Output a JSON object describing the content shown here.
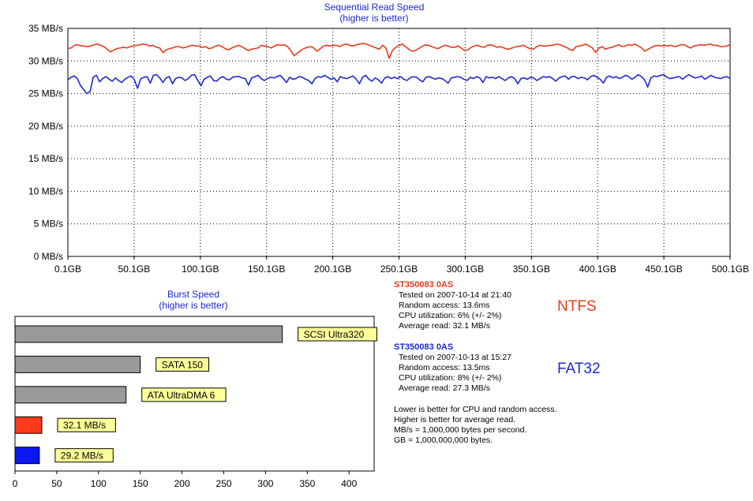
{
  "colors": {
    "ntfs": "#e63c1e",
    "fat32": "#1a2ad2",
    "title": "#1a2ad2",
    "grid": "#000000",
    "bar_gray": "#999999",
    "label_bg": "#ffff99"
  },
  "chart_data": [
    {
      "type": "line",
      "title": "Sequential Read Speed",
      "subtitle": "(higher is better)",
      "x_ticks": [
        "0.1GB",
        "50.1GB",
        "100.1GB",
        "150.1GB",
        "200.1GB",
        "250.1GB",
        "300.1GB",
        "350.1GB",
        "400.1GB",
        "450.1GB",
        "500.1GB"
      ],
      "y_ticks": [
        "0 MB/s",
        "5 MB/s",
        "10 MB/s",
        "15 MB/s",
        "20 MB/s",
        "25 MB/s",
        "30 MB/s",
        "35 MB/s"
      ],
      "xlim": [
        0.1,
        500.1
      ],
      "ylim": [
        0,
        35
      ],
      "grid": true,
      "series": [
        {
          "key": "ntfs",
          "base": 32.1,
          "values": [
            31.9,
            32.0,
            32.4,
            32.5,
            32.3,
            32.3,
            32.2,
            32.3,
            32.5,
            32.6,
            32.4,
            32.2,
            31.8,
            31.4,
            31.7,
            31.9,
            32.0,
            32.1,
            32.0,
            32.2,
            32.3,
            32.4,
            32.5,
            32.6,
            32.5,
            32.3,
            32.4,
            32.1,
            32.0,
            31.3,
            31.7,
            31.9,
            32.0,
            32.2,
            32.2,
            32.0,
            32.1,
            32.3,
            32.4,
            32.3,
            32.3,
            32.1,
            32.2,
            31.9,
            32.0,
            32.3,
            32.4,
            32.2,
            31.9,
            31.7,
            32.0,
            32.2,
            32.4,
            32.2,
            31.9,
            31.6,
            31.8,
            31.9,
            32.0,
            32.4,
            32.3,
            32.2,
            32.0,
            32.3,
            32.5,
            32.4,
            32.5,
            32.2,
            31.6,
            30.8,
            31.2,
            31.6,
            31.9,
            32.1,
            32.2,
            32.0,
            31.5,
            31.9,
            32.3,
            32.4,
            32.3,
            32.4,
            32.4,
            32.2,
            32.5,
            32.6,
            32.4,
            32.3,
            32.5,
            32.6,
            32.7,
            32.6,
            32.4,
            32.2,
            32.0,
            31.8,
            32.4,
            32.0,
            30.4,
            31.6,
            32.1,
            32.4,
            32.6,
            32.2,
            31.8,
            31.5,
            31.6,
            31.9,
            32.2,
            32.5,
            32.4,
            32.2,
            32.0,
            31.9,
            32.2,
            32.4,
            32.3,
            32.1,
            32.1,
            32.3,
            32.0,
            31.6,
            31.7,
            32.1,
            32.3,
            32.4,
            32.2,
            32.1,
            32.4,
            32.5,
            32.3,
            32.1,
            32.2,
            32.0,
            31.8,
            31.9,
            32.1,
            32.2,
            32.3,
            32.4,
            32.1,
            31.9,
            31.8,
            32.2,
            32.4,
            32.3,
            32.3,
            32.4,
            32.4,
            32.6,
            32.5,
            32.3,
            32.1,
            31.8,
            31.6,
            32.2,
            32.3,
            32.4,
            32.6,
            32.3,
            32.0,
            31.3,
            32.0,
            32.2,
            31.8,
            32.0,
            32.1,
            32.3,
            32.5,
            32.2,
            32.3,
            32.5,
            32.4,
            32.6,
            32.3,
            32.0,
            31.5,
            31.8,
            32.1,
            32.3,
            32.4,
            32.3,
            32.4,
            32.3,
            32.4,
            32.2,
            32.3,
            32.5,
            32.5,
            32.2,
            32.0,
            32.3,
            32.4,
            32.5,
            32.4,
            32.5,
            32.6,
            32.4,
            32.4,
            32.2,
            32.2,
            32.3,
            32.5
          ]
        },
        {
          "key": "fat32",
          "base": 27.3,
          "values": [
            27.1,
            27.5,
            27.7,
            27.3,
            26.2,
            25.6,
            25.0,
            25.3,
            27.5,
            27.8,
            26.8,
            27.3,
            27.6,
            27.2,
            26.9,
            27.4,
            27.0,
            26.7,
            27.2,
            27.5,
            27.7,
            27.1,
            25.8,
            27.3,
            27.5,
            27.6,
            26.6,
            27.8,
            27.9,
            27.4,
            26.7,
            27.4,
            27.6,
            26.5,
            27.3,
            27.5,
            27.4,
            27.0,
            27.3,
            27.8,
            27.9,
            27.0,
            26.2,
            27.2,
            27.5,
            27.7,
            27.0,
            26.9,
            27.4,
            27.6,
            27.2,
            27.1,
            27.5,
            27.6,
            27.6,
            27.4,
            27.3,
            26.3,
            27.4,
            27.6,
            27.8,
            27.3,
            27.0,
            27.3,
            27.5,
            27.4,
            27.6,
            27.8,
            27.3,
            26.7,
            27.5,
            27.2,
            27.3,
            27.6,
            27.5,
            27.2,
            27.0,
            26.5,
            27.3,
            27.6,
            27.5,
            27.8,
            27.5,
            27.2,
            27.4,
            26.8,
            27.6,
            27.4,
            27.3,
            27.5,
            27.7,
            27.2,
            26.5,
            27.5,
            27.8,
            27.2,
            26.9,
            27.4,
            27.1,
            26.6,
            27.4,
            27.6,
            27.3,
            27.5,
            27.3,
            27.6,
            27.2,
            27.0,
            27.4,
            27.6,
            27.5,
            27.1,
            26.8,
            27.5,
            27.6,
            27.4,
            27.2,
            27.4,
            27.3,
            27.0,
            26.6,
            27.4,
            27.5,
            27.6,
            27.5,
            27.2,
            27.0,
            27.5,
            27.3,
            27.6,
            27.4,
            26.7,
            27.6,
            27.4,
            27.5,
            27.3,
            27.6,
            27.3,
            27.0,
            27.4,
            27.6,
            27.3,
            26.5,
            27.3,
            27.4,
            27.2,
            27.5,
            27.4,
            27.0,
            27.3,
            27.6,
            27.5,
            27.6,
            27.3,
            26.9,
            27.4,
            27.6,
            27.7,
            27.2,
            27.6,
            27.6,
            27.3,
            27.5,
            27.4,
            27.1,
            27.6,
            27.8,
            27.5,
            27.2,
            26.6,
            27.5,
            27.7,
            27.4,
            27.6,
            27.3,
            27.5,
            27.8,
            27.6,
            27.2,
            27.5,
            27.9,
            27.6,
            27.1,
            26.0,
            27.4,
            27.7,
            27.6,
            27.8,
            27.9,
            27.5,
            27.3,
            27.4,
            27.5,
            27.6,
            27.2,
            27.6,
            27.9,
            27.6,
            27.4,
            27.5,
            27.7,
            27.2,
            27.5,
            27.8,
            27.5,
            27.4,
            27.3,
            27.5,
            27.6,
            27.3
          ]
        }
      ]
    },
    {
      "type": "bar",
      "orientation": "horizontal",
      "title": "Burst Speed",
      "subtitle": "(higher is better)",
      "x_ticks": [
        "0",
        "50",
        "100",
        "150",
        "200",
        "250",
        "300",
        "350",
        "400"
      ],
      "xlim": [
        0,
        430
      ],
      "bars": [
        {
          "label": "SCSI Ultra320",
          "value": 320,
          "color": "#999999"
        },
        {
          "label": "SATA 150",
          "value": 150,
          "color": "#999999"
        },
        {
          "label": "ATA UltraDMA 6",
          "value": 133,
          "color": "#999999"
        },
        {
          "label": "32.1 MB/s",
          "value": 32.1,
          "color": "#ff3a1a"
        },
        {
          "label": "29.2 MB/s",
          "value": 29.2,
          "color": "#0a18f0"
        }
      ]
    }
  ],
  "results": [
    {
      "drive": "ST350083 0AS",
      "tested": "Tested on 2007-10-14 at 21:40",
      "random": "Random access: 13.6ms",
      "cpu": "CPU utilization: 6% (+/- 2%)",
      "avg": "Average read: 32.1 MB/s",
      "fs": "NTFS"
    },
    {
      "drive": "ST350083 0AS",
      "tested": "Tested on 2007-10-13 at 15:27",
      "random": "Random access: 13.5ms",
      "cpu": "CPU utilization: 8% (+/- 2%)",
      "avg": "Average read: 27.3 MB/s",
      "fs": "FAT32"
    }
  ],
  "notes": [
    "Lower is better for CPU and random access.",
    "Higher is better for average read.",
    "MB/s = 1,000,000 bytes per second.",
    "GB = 1,000,000,000 bytes."
  ]
}
